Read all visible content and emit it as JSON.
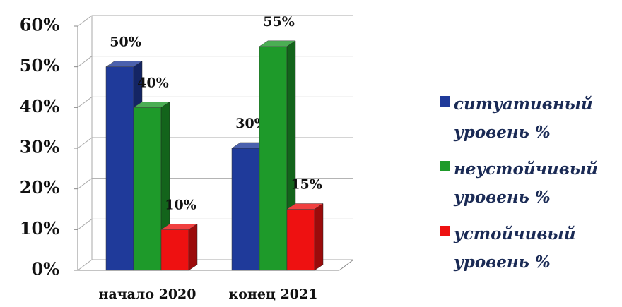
{
  "chart_data": {
    "type": "bar3d",
    "categories": [
      "начало 2020",
      "конец 2021"
    ],
    "series": [
      {
        "name": "ситуативный уровень %",
        "color": "#1f3a9a",
        "values": [
          50,
          30
        ],
        "value_labels": [
          "50%",
          "30%"
        ]
      },
      {
        "name": "неустойчивый уровень %",
        "color": "#1e9a2a",
        "values": [
          40,
          55
        ],
        "value_labels": [
          "40%",
          "55%"
        ]
      },
      {
        "name": "устойчивый уровень %",
        "color": "#ee1111",
        "values": [
          10,
          15
        ],
        "value_labels": [
          "10%",
          "15%"
        ]
      }
    ],
    "ylim": [
      0,
      60
    ],
    "yticks": [
      {
        "value": 0,
        "label": "0%"
      },
      {
        "value": 10,
        "label": "10%"
      },
      {
        "value": 20,
        "label": "20%"
      },
      {
        "value": 30,
        "label": "30%"
      },
      {
        "value": 40,
        "label": "40%"
      },
      {
        "value": 50,
        "label": "50%"
      },
      {
        "value": 60,
        "label": "60%"
      }
    ],
    "grid": true,
    "legend": "right"
  }
}
